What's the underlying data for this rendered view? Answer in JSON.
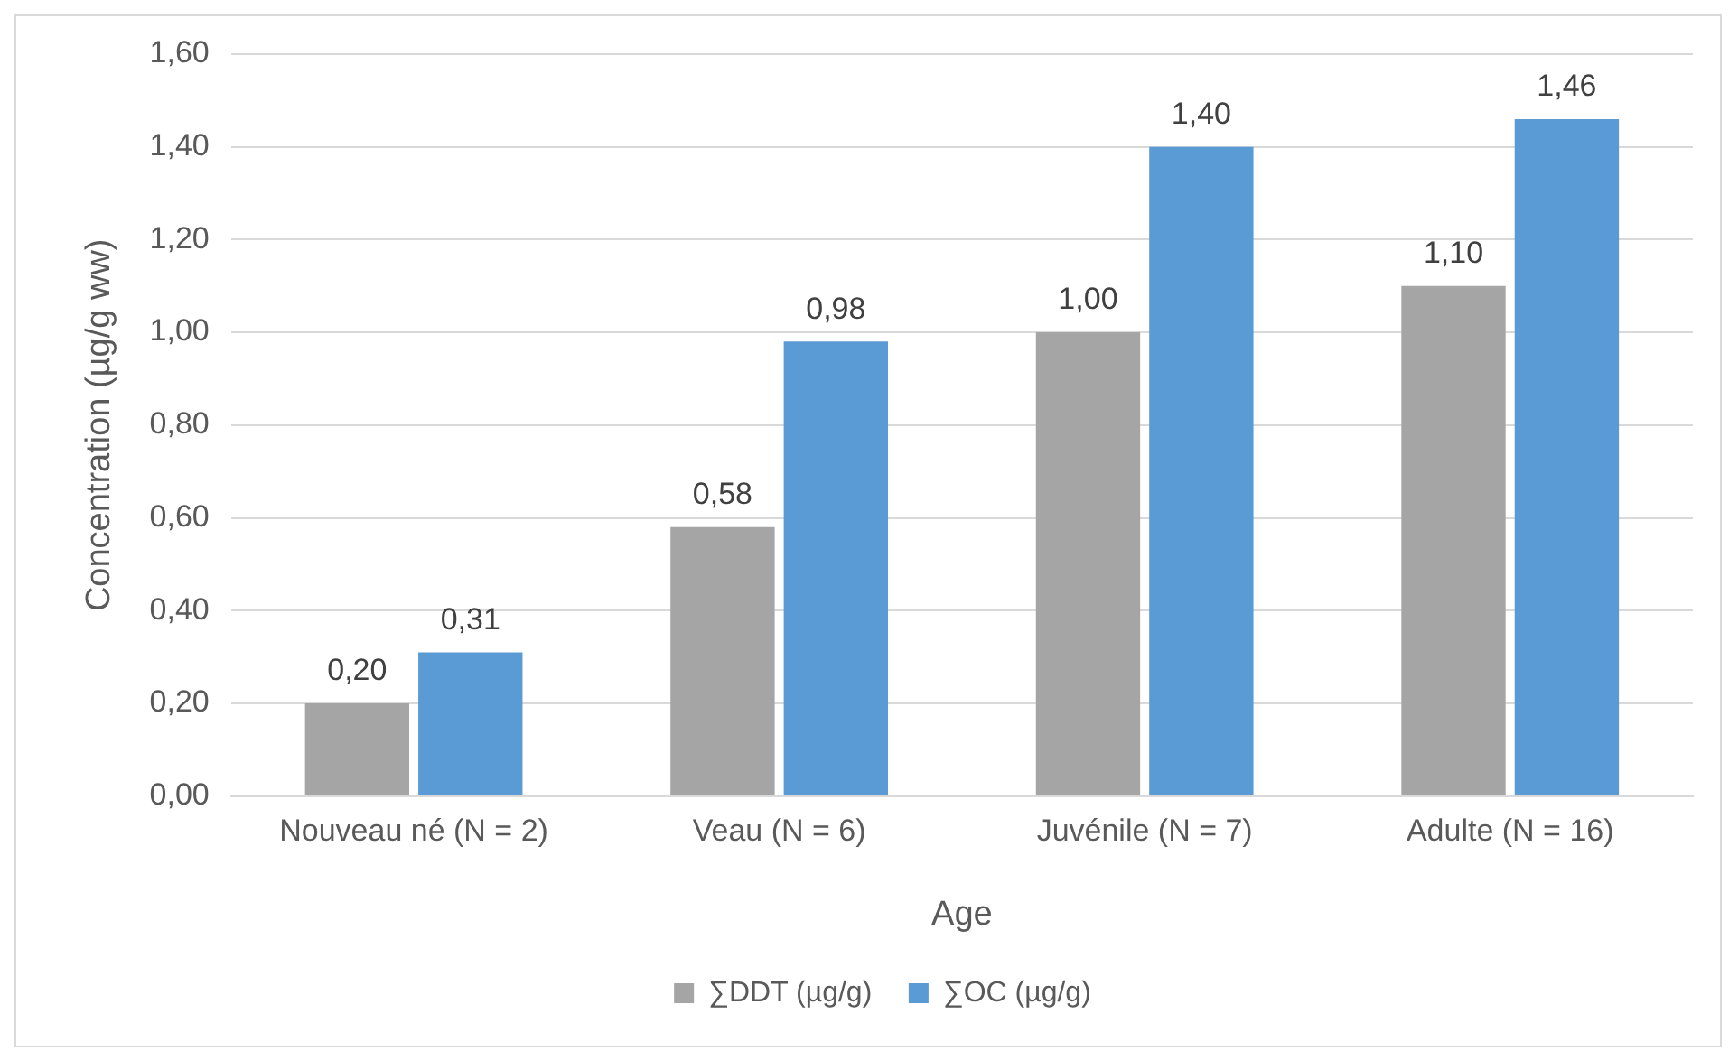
{
  "chart_data": {
    "type": "bar",
    "xlabel": "Age",
    "ylabel": "Concentration (µg/g ww)",
    "categories": [
      "Nouveau né (N = 2)",
      "Veau (N = 6)",
      "Juvénile (N = 7)",
      "Adulte (N = 16)"
    ],
    "series": [
      {
        "name": "∑DDT (µg/g)",
        "color": "#a5a5a5",
        "values": [
          0.2,
          0.58,
          1.0,
          1.1
        ],
        "value_labels": [
          "0,20",
          "0,58",
          "1,00",
          "1,10"
        ]
      },
      {
        "name": "∑OC (µg/g)",
        "color": "#5b9bd5",
        "values": [
          0.31,
          0.98,
          1.4,
          1.46
        ],
        "value_labels": [
          "0,31",
          "0,98",
          "1,40",
          "1,46"
        ]
      }
    ],
    "ylim": [
      0,
      1.6
    ],
    "yticks": [
      {
        "value": 0,
        "label": "0,00"
      },
      {
        "value": 0.2,
        "label": "0,20"
      },
      {
        "value": 0.4,
        "label": "0,40"
      },
      {
        "value": 0.6,
        "label": "0,60"
      },
      {
        "value": 0.8,
        "label": "0,80"
      },
      {
        "value": 1.0,
        "label": "1,00"
      },
      {
        "value": 1.2,
        "label": "1,20"
      },
      {
        "value": 1.4,
        "label": "1,40"
      },
      {
        "value": 1.6,
        "label": "1,60"
      }
    ],
    "grid": "y",
    "legend": "bottom"
  }
}
